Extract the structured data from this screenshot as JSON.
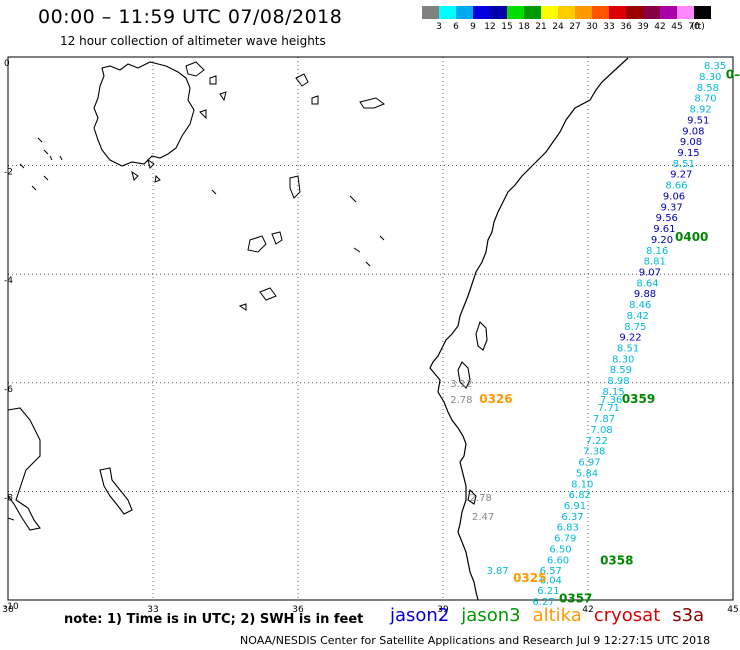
{
  "header": {
    "title": "00:00 – 11:59 UTC 07/08/2018",
    "subtitle": "12 hour collection of altimeter wave heights"
  },
  "legend": {
    "labels": [
      "3",
      "6",
      "9",
      "12",
      "15",
      "18",
      "21",
      "24",
      "27",
      "30",
      "33",
      "36",
      "39",
      "42",
      "45",
      "70",
      "(ft)"
    ],
    "colors": [
      "#808080",
      "#00ffff",
      "#00aaee",
      "#0000dd",
      "#0000aa",
      "#00dd00",
      "#009900",
      "#ffff00",
      "#ffcc00",
      "#ff9900",
      "#ff5500",
      "#dd0000",
      "#990000",
      "#880044",
      "#aa00aa",
      "#ff88ff",
      "#000000"
    ]
  },
  "axes": {
    "lon_ticks": [
      "30",
      "33",
      "36",
      "39",
      "42",
      "45"
    ],
    "lat_ticks": [
      "0",
      "-2",
      "-4",
      "-6",
      "-8",
      "-10"
    ]
  },
  "satellites": [
    {
      "name": "jason2",
      "color": "#0000cc"
    },
    {
      "name": "jason3",
      "color": "#009900"
    },
    {
      "name": "altika",
      "color": "#ff9900"
    },
    {
      "name": "cryosat",
      "color": "#dd0000"
    },
    {
      "name": "s3a",
      "color": "#880000"
    }
  ],
  "time_labels": [
    {
      "text": "0326",
      "lon": 39.75,
      "lat": -6.28,
      "color": "#ff9900"
    },
    {
      "text": "0359",
      "lon": 42.7,
      "lat": -6.28,
      "color": "#008800"
    },
    {
      "text": "0400",
      "lon": 43.8,
      "lat": -3.3,
      "color": "#008800"
    },
    {
      "text": "0358",
      "lon": 42.25,
      "lat": -9.25,
      "color": "#008800"
    },
    {
      "text": "0325",
      "lon": 40.45,
      "lat": -9.58,
      "color": "#ff9900"
    },
    {
      "text": "0357",
      "lon": 41.4,
      "lat": -9.95,
      "color": "#008800"
    },
    {
      "text": "0–",
      "lon": 44.85,
      "lat": -0.3,
      "color": "#008800"
    }
  ],
  "observations": [
    {
      "text": "8.35",
      "lon": 44.4,
      "lat": -0.15,
      "color": "#00bbdd"
    },
    {
      "text": "8.30",
      "lon": 44.3,
      "lat": -0.35,
      "color": "#00bbdd"
    },
    {
      "text": "8.58",
      "lon": 44.25,
      "lat": -0.55,
      "color": "#00bbdd"
    },
    {
      "text": "8.70",
      "lon": 44.2,
      "lat": -0.75,
      "color": "#00bbdd"
    },
    {
      "text": "8.92",
      "lon": 44.1,
      "lat": -0.95,
      "color": "#00bbdd"
    },
    {
      "text": "9.51",
      "lon": 44.05,
      "lat": -1.15,
      "color": "#0000bb"
    },
    {
      "text": "9.08",
      "lon": 43.95,
      "lat": -1.35,
      "color": "#0000bb"
    },
    {
      "text": "9.08",
      "lon": 43.9,
      "lat": -1.55,
      "color": "#0000bb"
    },
    {
      "text": "9.15",
      "lon": 43.85,
      "lat": -1.75,
      "color": "#0000bb"
    },
    {
      "text": "8.51",
      "lon": 43.75,
      "lat": -1.95,
      "color": "#00bbdd"
    },
    {
      "text": "9.27",
      "lon": 43.7,
      "lat": -2.15,
      "color": "#0000bb"
    },
    {
      "text": "8.66",
      "lon": 43.6,
      "lat": -2.35,
      "color": "#00bbdd"
    },
    {
      "text": "9.06",
      "lon": 43.55,
      "lat": -2.55,
      "color": "#0000bb"
    },
    {
      "text": "9.37",
      "lon": 43.5,
      "lat": -2.75,
      "color": "#0000bb"
    },
    {
      "text": "9.56",
      "lon": 43.4,
      "lat": -2.95,
      "color": "#0000bb"
    },
    {
      "text": "9.61",
      "lon": 43.35,
      "lat": -3.15,
      "color": "#0000bb"
    },
    {
      "text": "9.20",
      "lon": 43.3,
      "lat": -3.35,
      "color": "#0000bb"
    },
    {
      "text": "8.16",
      "lon": 43.2,
      "lat": -3.55,
      "color": "#00bbdd"
    },
    {
      "text": "8.81",
      "lon": 43.15,
      "lat": -3.75,
      "color": "#00bbdd"
    },
    {
      "text": "9.07",
      "lon": 43.05,
      "lat": -3.95,
      "color": "#0000bb"
    },
    {
      "text": "8.64",
      "lon": 43.0,
      "lat": -4.15,
      "color": "#00bbdd"
    },
    {
      "text": "9.88",
      "lon": 42.95,
      "lat": -4.35,
      "color": "#0000bb"
    },
    {
      "text": "8.46",
      "lon": 42.85,
      "lat": -4.55,
      "color": "#00bbdd"
    },
    {
      "text": "8.42",
      "lon": 42.8,
      "lat": -4.75,
      "color": "#00bbdd"
    },
    {
      "text": "8.75",
      "lon": 42.75,
      "lat": -4.95,
      "color": "#00bbdd"
    },
    {
      "text": "9.22",
      "lon": 42.65,
      "lat": -5.15,
      "color": "#0000bb"
    },
    {
      "text": "8.51",
      "lon": 42.6,
      "lat": -5.35,
      "color": "#00bbdd"
    },
    {
      "text": "8.30",
      "lon": 42.5,
      "lat": -5.55,
      "color": "#00bbdd"
    },
    {
      "text": "8.59",
      "lon": 42.45,
      "lat": -5.75,
      "color": "#00bbdd"
    },
    {
      "text": "8.98",
      "lon": 42.4,
      "lat": -5.95,
      "color": "#00bbdd"
    },
    {
      "text": "8.15",
      "lon": 42.3,
      "lat": -6.15,
      "color": "#00bbdd"
    },
    {
      "text": "7.36",
      "lon": 42.25,
      "lat": -6.3,
      "color": "#00bbdd"
    },
    {
      "text": "7.71",
      "lon": 42.2,
      "lat": -6.45,
      "color": "#00bbdd"
    },
    {
      "text": "7.87",
      "lon": 42.1,
      "lat": -6.65,
      "color": "#00bbdd"
    },
    {
      "text": "7.08",
      "lon": 42.05,
      "lat": -6.85,
      "color": "#00bbdd"
    },
    {
      "text": "7.22",
      "lon": 41.95,
      "lat": -7.05,
      "color": "#00bbdd"
    },
    {
      "text": "7.38",
      "lon": 41.9,
      "lat": -7.25,
      "color": "#00bbdd"
    },
    {
      "text": "6.97",
      "lon": 41.8,
      "lat": -7.45,
      "color": "#00bbdd"
    },
    {
      "text": "5.84",
      "lon": 41.75,
      "lat": -7.65,
      "color": "#00bbdd"
    },
    {
      "text": "8.10",
      "lon": 41.65,
      "lat": -7.85,
      "color": "#00bbdd"
    },
    {
      "text": "6.82",
      "lon": 41.6,
      "lat": -8.05,
      "color": "#00bbdd"
    },
    {
      "text": "6.91",
      "lon": 41.5,
      "lat": -8.25,
      "color": "#00bbdd"
    },
    {
      "text": "6.37",
      "lon": 41.45,
      "lat": -8.45,
      "color": "#00bbdd"
    },
    {
      "text": "6.83",
      "lon": 41.35,
      "lat": -8.65,
      "color": "#00bbdd"
    },
    {
      "text": "6.79",
      "lon": 41.3,
      "lat": -8.85,
      "color": "#00bbdd"
    },
    {
      "text": "6.50",
      "lon": 41.2,
      "lat": -9.05,
      "color": "#00bbdd"
    },
    {
      "text": "6.60",
      "lon": 41.15,
      "lat": -9.25,
      "color": "#00bbdd"
    },
    {
      "text": "6.57",
      "lon": 41.0,
      "lat": -9.45,
      "color": "#00bbdd"
    },
    {
      "text": "6.04",
      "lon": 41.0,
      "lat": -9.62,
      "color": "#00bbdd"
    },
    {
      "text": "6.21",
      "lon": 40.95,
      "lat": -9.82,
      "color": "#00bbdd"
    },
    {
      "text": "6.27",
      "lon": 40.85,
      "lat": -10.02,
      "color": "#00bbdd"
    },
    {
      "text": "3.87",
      "lon": 39.9,
      "lat": -9.45,
      "color": "#00bbdd"
    },
    {
      "text": "2.78",
      "lon": 39.55,
      "lat": -8.1,
      "color": "#888888"
    },
    {
      "text": "2.47",
      "lon": 39.6,
      "lat": -8.45,
      "color": "#888888"
    },
    {
      "text": "3.12",
      "lon": 39.15,
      "lat": -6.0,
      "color": "#888888"
    },
    {
      "text": "2.78",
      "lon": 39.15,
      "lat": -6.3,
      "color": "#888888"
    }
  ],
  "footer": {
    "note": "note:  1) Time is in UTC; 2) SWH is in feet",
    "credit": "NOAA/NESDIS Center for Satellite Applications and Research    Jul  9 12:27:15 UTC 2018"
  }
}
